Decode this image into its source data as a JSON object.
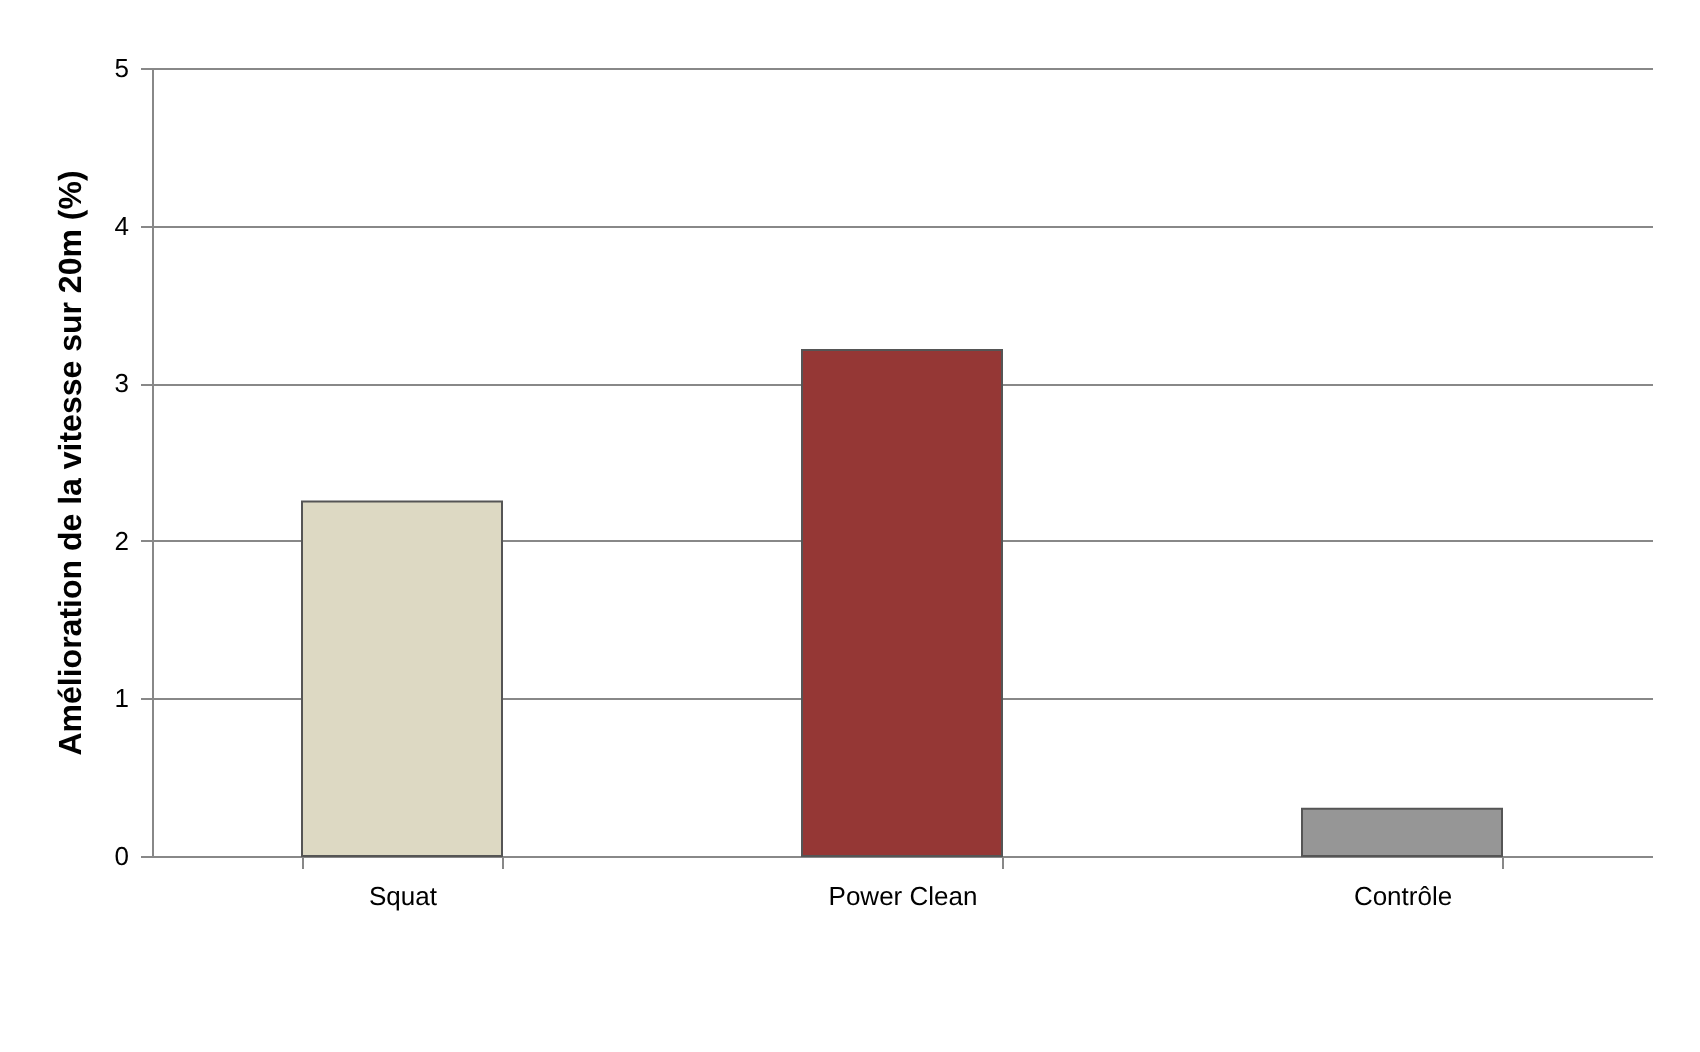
{
  "chart_data": {
    "type": "bar",
    "ylabel": "Amélioration de la vitesse sur 20m (%)",
    "categories": [
      "Squat",
      "Power Clean",
      "Contrôle"
    ],
    "values": [
      2.25,
      3.21,
      0.3
    ],
    "colors": [
      "#ddd9c3",
      "#953735",
      "#969696"
    ],
    "ylim": [
      0,
      5
    ],
    "yticks": [
      0,
      1,
      2,
      3,
      4,
      5
    ],
    "grid": "y"
  }
}
